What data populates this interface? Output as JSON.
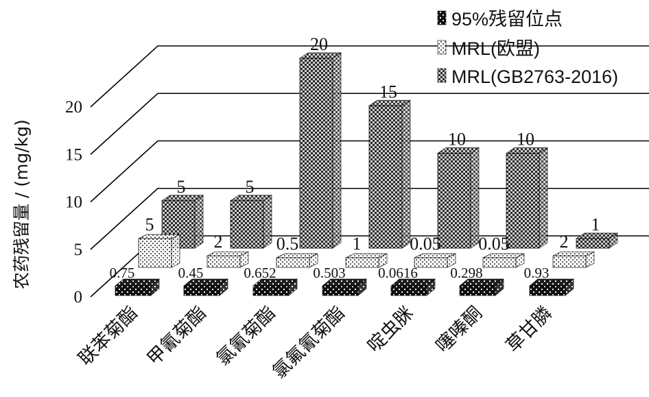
{
  "chart_data": {
    "type": "bar",
    "title": "",
    "xlabel": "",
    "ylabel": "农药残留量 / (mg/kg)",
    "ylim": [
      0,
      20
    ],
    "yticks": [
      0,
      5,
      10,
      15,
      20
    ],
    "grid": true,
    "legend_position": "top-right",
    "categories": [
      "联苯菊酯",
      "甲氰菊酯",
      "氯氰菊酯",
      "氯氟氰菊酯",
      "啶虫脒",
      "噻嗪酮",
      "草甘膦"
    ],
    "series": [
      {
        "name": "95%残留位点",
        "values": [
          0.75,
          0.45,
          0.652,
          0.503,
          0.0616,
          0.298,
          0.93
        ],
        "labels": [
          "0.75",
          "0.45",
          "0.652",
          "0.503",
          "0.0616",
          "0.298",
          "0.93"
        ]
      },
      {
        "name": "MRL(欧盟)",
        "values": [
          5,
          2,
          0.5,
          1,
          0.05,
          0.05,
          2
        ],
        "labels": [
          "5",
          "2",
          "0.5",
          "1",
          "0.05",
          "0.05",
          "2"
        ]
      },
      {
        "name": "MRL(GB2763-2016)",
        "values": [
          5,
          5,
          20,
          15,
          10,
          10,
          1
        ],
        "labels": [
          "5",
          "5",
          "20",
          "15",
          "10",
          "10",
          "1"
        ]
      }
    ]
  }
}
